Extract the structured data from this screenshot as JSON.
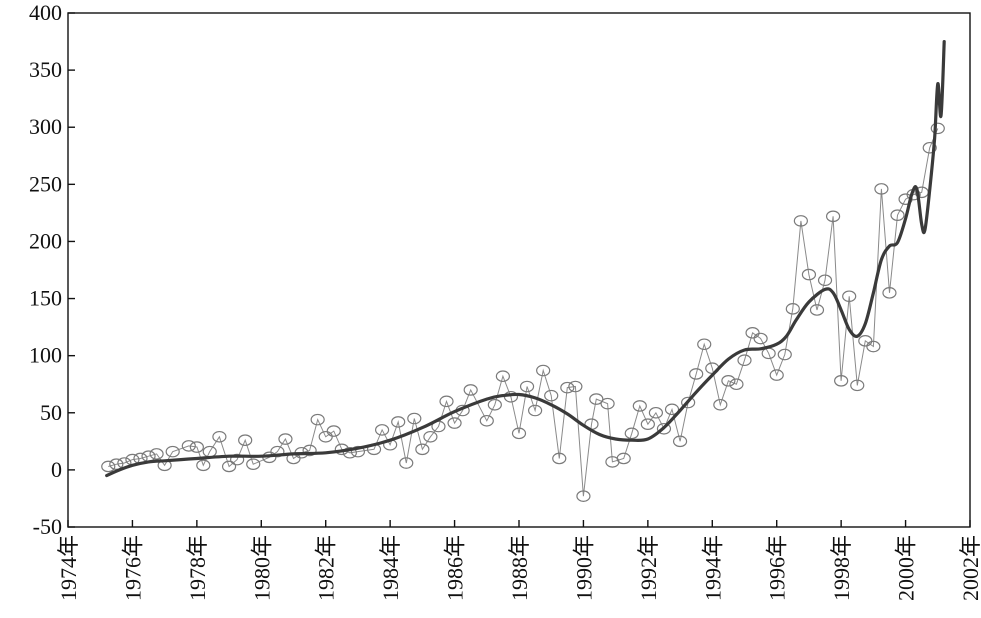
{
  "chart_data": {
    "type": "line",
    "title": "",
    "xlabel": "",
    "ylabel": "",
    "xlim": [
      1974,
      2002
    ],
    "ylim": [
      -50,
      400
    ],
    "grid": false,
    "legend": "none",
    "x_ticks": [
      1974,
      1976,
      1978,
      1980,
      1982,
      1984,
      1986,
      1988,
      1990,
      1992,
      1994,
      1996,
      1998,
      2000,
      2002
    ],
    "x_tick_labels": [
      "1974年",
      "1976年",
      "1978年",
      "1980年",
      "1982年",
      "1984年",
      "1986年",
      "1988年",
      "1990年",
      "1992年",
      "1994年",
      "1996年",
      "1998年",
      "2000年",
      "2002年"
    ],
    "y_ticks": [
      -50,
      0,
      50,
      100,
      150,
      200,
      250,
      300,
      350,
      400
    ],
    "y_tick_labels": [
      "-50",
      "0",
      "50",
      "100",
      "150",
      "200",
      "250",
      "300",
      "350",
      "400"
    ],
    "series": [
      {
        "style": "thin-line-with-circle-markers",
        "color": "#8a8a8a",
        "points": [
          [
            1975.25,
            3
          ],
          [
            1975.5,
            5
          ],
          [
            1975.75,
            6
          ],
          [
            1976.0,
            9
          ],
          [
            1976.25,
            10
          ],
          [
            1976.5,
            12
          ],
          [
            1976.75,
            14
          ],
          [
            1977.0,
            4
          ],
          [
            1977.25,
            16
          ],
          [
            1977.75,
            21
          ],
          [
            1978.0,
            20
          ],
          [
            1978.2,
            4
          ],
          [
            1978.4,
            16
          ],
          [
            1978.7,
            29
          ],
          [
            1979.0,
            3
          ],
          [
            1979.25,
            9
          ],
          [
            1979.5,
            26
          ],
          [
            1979.75,
            5
          ],
          [
            1980.25,
            11
          ],
          [
            1980.5,
            16
          ],
          [
            1980.75,
            27
          ],
          [
            1981.0,
            10
          ],
          [
            1981.25,
            15
          ],
          [
            1981.5,
            17
          ],
          [
            1981.75,
            44
          ],
          [
            1982.0,
            29
          ],
          [
            1982.25,
            34
          ],
          [
            1982.5,
            18
          ],
          [
            1982.75,
            15
          ],
          [
            1983.0,
            16
          ],
          [
            1983.5,
            18
          ],
          [
            1983.75,
            35
          ],
          [
            1984.0,
            22
          ],
          [
            1984.25,
            42
          ],
          [
            1984.5,
            6
          ],
          [
            1984.75,
            45
          ],
          [
            1985.0,
            18
          ],
          [
            1985.25,
            29
          ],
          [
            1985.5,
            38
          ],
          [
            1985.75,
            60
          ],
          [
            1986.0,
            41
          ],
          [
            1986.25,
            52
          ],
          [
            1986.5,
            70
          ],
          [
            1987.0,
            43
          ],
          [
            1987.25,
            57
          ],
          [
            1987.5,
            82
          ],
          [
            1987.75,
            64
          ],
          [
            1988.0,
            32
          ],
          [
            1988.25,
            73
          ],
          [
            1988.5,
            52
          ],
          [
            1988.75,
            87
          ],
          [
            1989.0,
            65
          ],
          [
            1989.25,
            10
          ],
          [
            1989.5,
            72
          ],
          [
            1989.75,
            73
          ],
          [
            1990.0,
            -23
          ],
          [
            1990.25,
            40
          ],
          [
            1990.4,
            62
          ],
          [
            1990.75,
            58
          ],
          [
            1990.9,
            7
          ],
          [
            1991.25,
            10
          ],
          [
            1991.5,
            32
          ],
          [
            1991.75,
            56
          ],
          [
            1992.0,
            40
          ],
          [
            1992.25,
            50
          ],
          [
            1992.5,
            36
          ],
          [
            1992.75,
            53
          ],
          [
            1993.0,
            25
          ],
          [
            1993.25,
            59
          ],
          [
            1993.5,
            84
          ],
          [
            1993.75,
            110
          ],
          [
            1994.0,
            89
          ],
          [
            1994.25,
            57
          ],
          [
            1994.5,
            78
          ],
          [
            1994.75,
            75
          ],
          [
            1995.0,
            96
          ],
          [
            1995.25,
            120
          ],
          [
            1995.5,
            115
          ],
          [
            1995.75,
            102
          ],
          [
            1996.0,
            83
          ],
          [
            1996.25,
            101
          ],
          [
            1996.5,
            141
          ],
          [
            1996.75,
            218
          ],
          [
            1997.0,
            171
          ],
          [
            1997.25,
            140
          ],
          [
            1997.5,
            166
          ],
          [
            1997.75,
            222
          ],
          [
            1998.0,
            78
          ],
          [
            1998.25,
            152
          ],
          [
            1998.5,
            74
          ],
          [
            1998.75,
            113
          ],
          [
            1999.0,
            108
          ],
          [
            1999.25,
            246
          ],
          [
            1999.5,
            155
          ],
          [
            1999.75,
            223
          ],
          [
            2000.0,
            237
          ],
          [
            2000.25,
            241
          ],
          [
            2000.5,
            243
          ],
          [
            2000.75,
            282
          ],
          [
            2001.0,
            299
          ]
        ]
      },
      {
        "style": "thick-smooth-line",
        "color": "#3a3a3a",
        "points": [
          [
            1975.2,
            -5
          ],
          [
            1975.6,
            0
          ],
          [
            1976.0,
            4
          ],
          [
            1976.5,
            7
          ],
          [
            1977.0,
            8
          ],
          [
            1977.5,
            9
          ],
          [
            1978.0,
            10
          ],
          [
            1979.0,
            12
          ],
          [
            1980.0,
            12
          ],
          [
            1981.0,
            14
          ],
          [
            1982.0,
            15
          ],
          [
            1983.0,
            19
          ],
          [
            1984.0,
            26
          ],
          [
            1985.0,
            37
          ],
          [
            1986.0,
            51
          ],
          [
            1987.0,
            62
          ],
          [
            1987.5,
            65
          ],
          [
            1988.0,
            66
          ],
          [
            1988.5,
            63
          ],
          [
            1989.0,
            57
          ],
          [
            1989.5,
            49
          ],
          [
            1990.0,
            39
          ],
          [
            1990.5,
            31
          ],
          [
            1991.0,
            27
          ],
          [
            1991.5,
            26
          ],
          [
            1992.0,
            27
          ],
          [
            1992.5,
            37
          ],
          [
            1993.0,
            52
          ],
          [
            1993.5,
            68
          ],
          [
            1994.0,
            83
          ],
          [
            1994.5,
            97
          ],
          [
            1995.0,
            105
          ],
          [
            1995.5,
            106
          ],
          [
            1996.0,
            110
          ],
          [
            1996.3,
            117
          ],
          [
            1996.6,
            131
          ],
          [
            1997.0,
            147
          ],
          [
            1997.5,
            158
          ],
          [
            1997.75,
            155
          ],
          [
            1998.0,
            140
          ],
          [
            1998.25,
            123
          ],
          [
            1998.5,
            117
          ],
          [
            1998.75,
            128
          ],
          [
            1999.0,
            155
          ],
          [
            1999.25,
            184
          ],
          [
            1999.5,
            196
          ],
          [
            1999.75,
            199
          ],
          [
            2000.0,
            220
          ],
          [
            2000.2,
            242
          ],
          [
            2000.35,
            246
          ],
          [
            2000.5,
            215
          ],
          [
            2000.6,
            210
          ],
          [
            2000.75,
            245
          ],
          [
            2000.9,
            290
          ],
          [
            2001.0,
            338
          ],
          [
            2001.1,
            310
          ],
          [
            2001.2,
            375
          ]
        ]
      }
    ]
  }
}
